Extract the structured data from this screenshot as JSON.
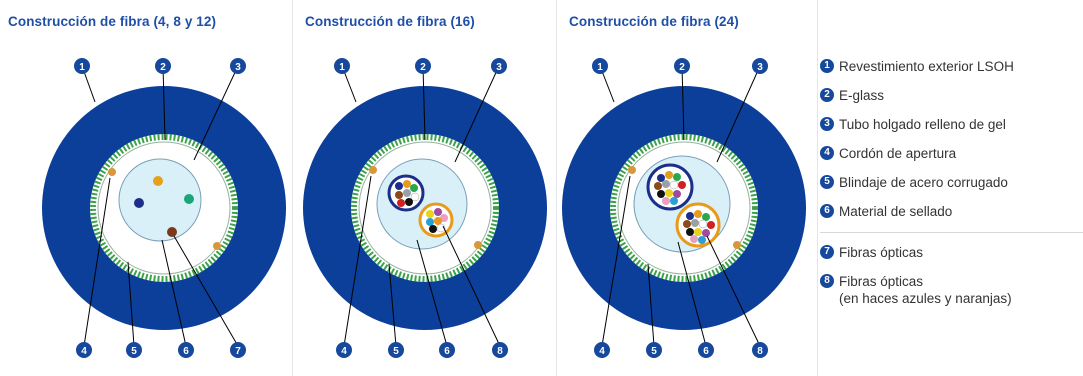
{
  "panels": [
    {
      "title": "Construcción de fibra (4, 8 y 12)",
      "callouts_top": [
        "1",
        "2",
        "3"
      ],
      "callouts_bottom": [
        "4",
        "5",
        "6",
        "7"
      ]
    },
    {
      "title": "Construcción de fibra (16)",
      "callouts_top": [
        "1",
        "2",
        "3"
      ],
      "callouts_bottom": [
        "4",
        "5",
        "6",
        "8"
      ]
    },
    {
      "title": "Construcción de fibra (24)",
      "callouts_top": [
        "1",
        "2",
        "3"
      ],
      "callouts_bottom": [
        "4",
        "5",
        "6",
        "8"
      ]
    }
  ],
  "legend": [
    {
      "num": "1",
      "text": "Revestimiento exterior LSOH"
    },
    {
      "num": "2",
      "text": "E-glass"
    },
    {
      "num": "3",
      "text": "Tubo holgado relleno de gel"
    },
    {
      "num": "4",
      "text": "Cordón de apertura"
    },
    {
      "num": "5",
      "text": "Blindaje de acero corrugado"
    },
    {
      "num": "6",
      "text": "Material de sellado"
    },
    {
      "num": "7",
      "text": "Fibras ópticas"
    },
    {
      "num": "8",
      "text": "Fibras ópticas",
      "text2": "(en haces azules y naranjas)"
    }
  ],
  "colors": {
    "jacket": "#0b3f9a",
    "badge": "#16489c",
    "title": "#1f4fa8",
    "gel": "#d9f0f8",
    "armor": "#3aa34a"
  }
}
